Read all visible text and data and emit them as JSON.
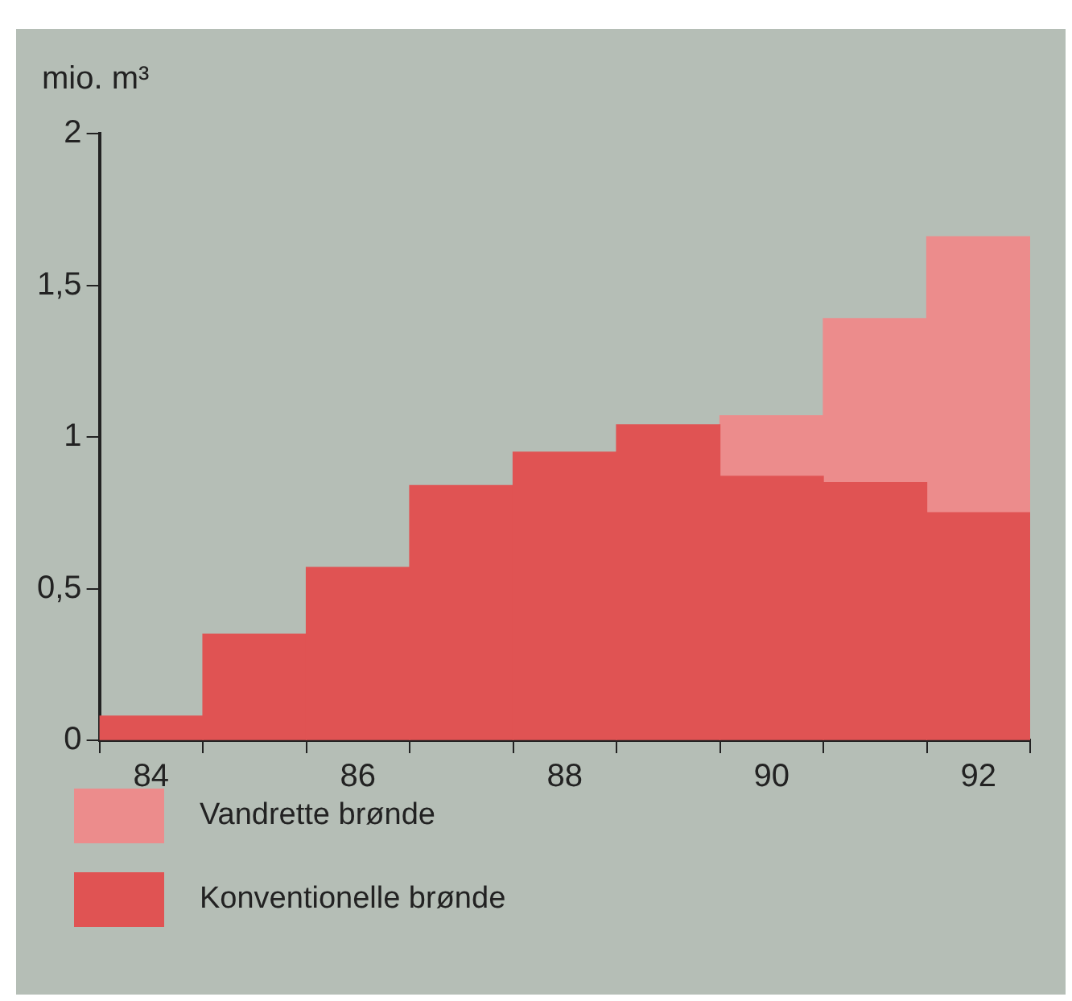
{
  "chart_data": {
    "type": "bar",
    "ylabel": "mio. m³",
    "stacked": true,
    "categories": [
      "84",
      null,
      "86",
      null,
      "88",
      null,
      "90",
      null,
      "92"
    ],
    "series": [
      {
        "name": "Konventionelle brønde",
        "color": "#e05353",
        "values": [
          0.08,
          0.35,
          0.57,
          0.84,
          0.95,
          1.04,
          0.87,
          0.85,
          0.75
        ]
      },
      {
        "name": "Vandrette brønde",
        "color": "#ec8c8c",
        "values": [
          null,
          null,
          null,
          null,
          null,
          null,
          0.2,
          0.54,
          0.91
        ]
      }
    ],
    "ylim": [
      0,
      2
    ],
    "yticks": [
      0,
      {
        "value": 0.5,
        "label": "0,5"
      },
      1,
      {
        "value": 1.5,
        "label": "1,5"
      },
      2
    ],
    "grid": false,
    "legend": "bottom"
  }
}
